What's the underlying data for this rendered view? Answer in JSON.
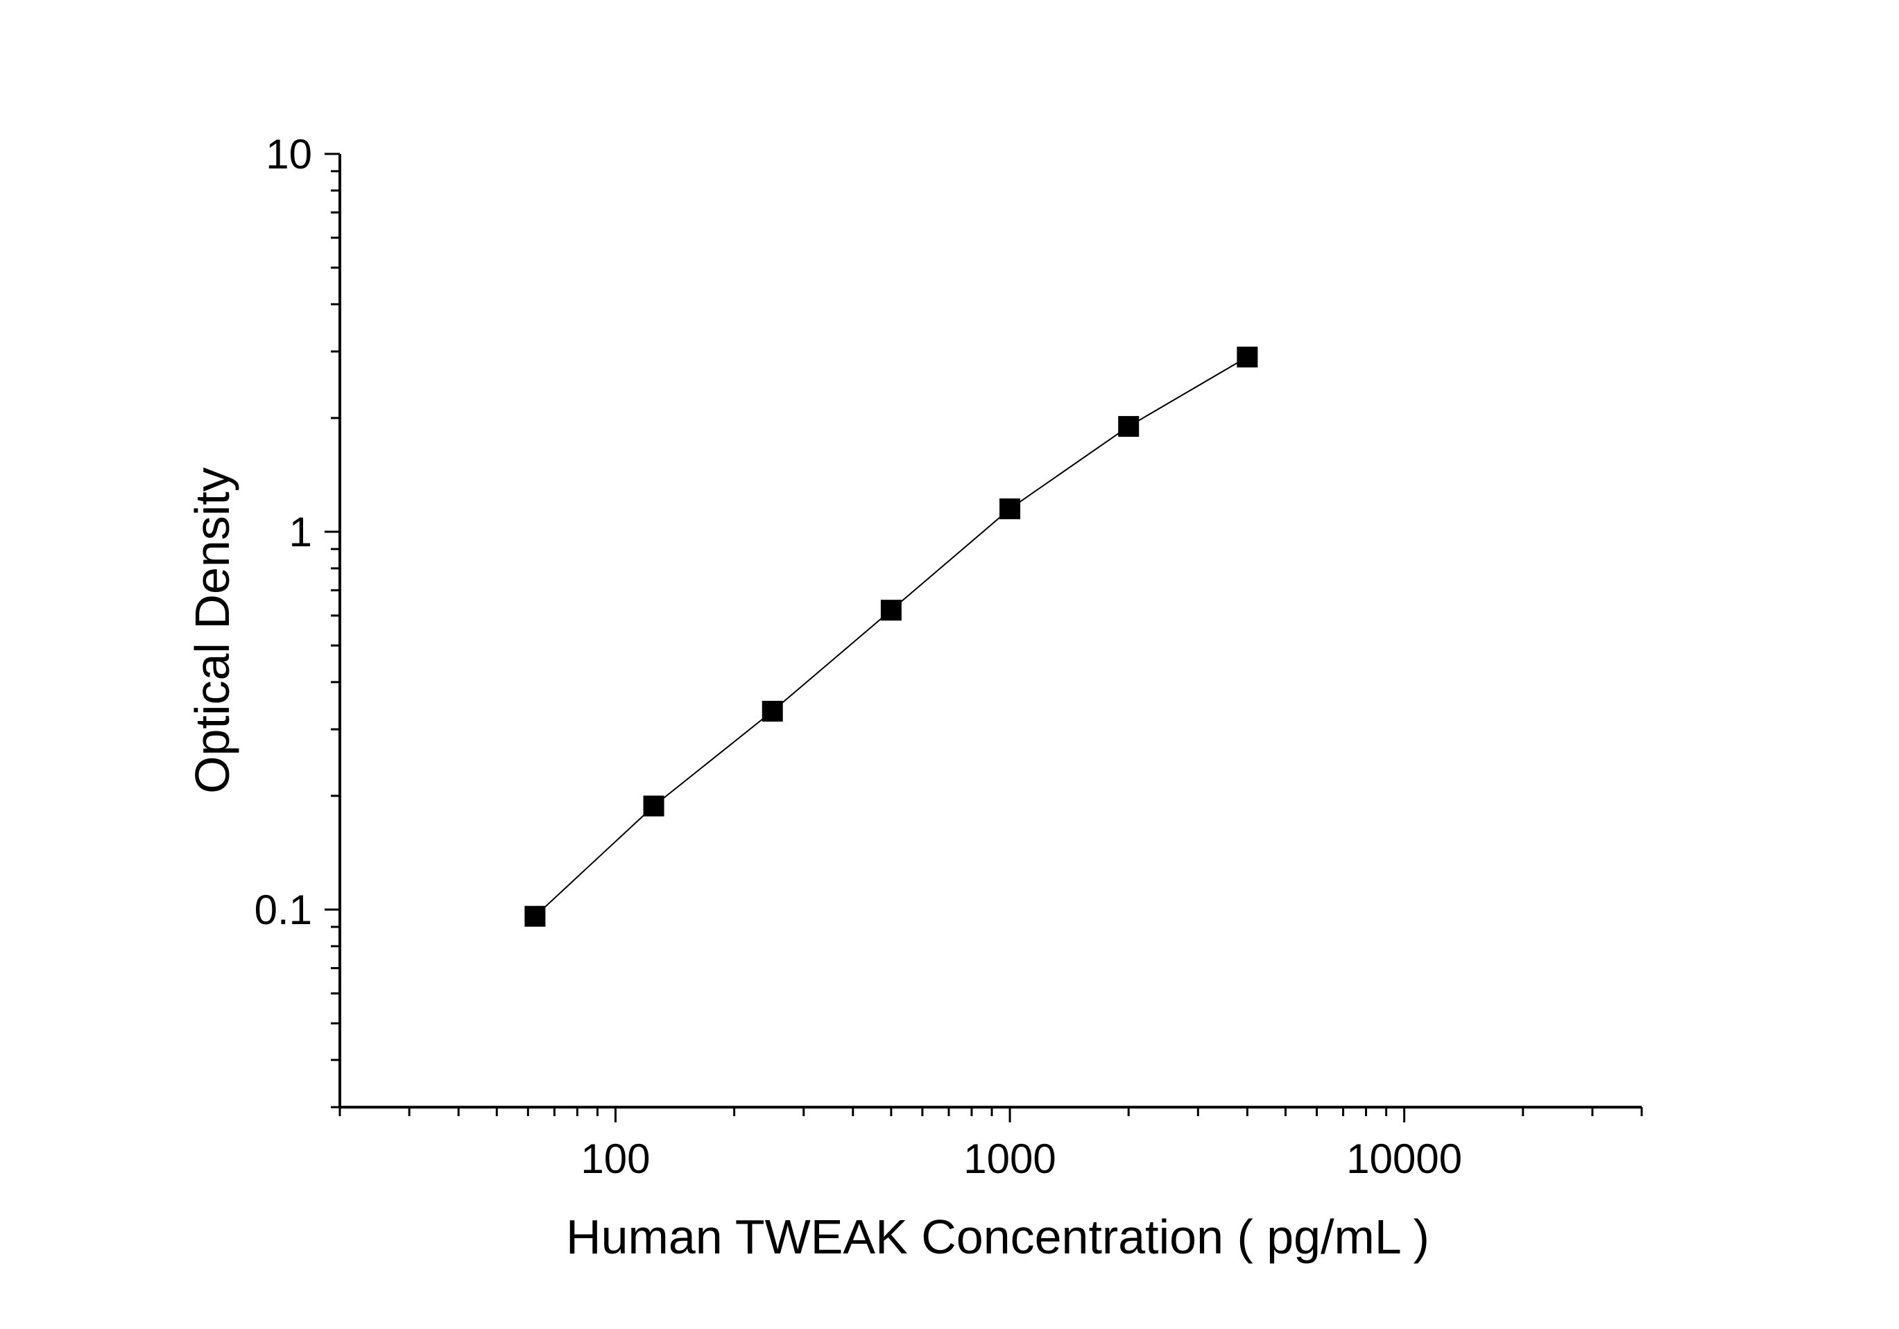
{
  "chart_data": {
    "type": "line",
    "xlabel": "Human TWEAK Concentration ( pg/mL )",
    "ylabel": "Optical Density",
    "x_scale": "log",
    "y_scale": "log",
    "xlim": [
      20,
      40000
    ],
    "ylim": [
      0.03,
      10
    ],
    "x_ticks": [
      "100",
      "1000",
      "10000"
    ],
    "y_ticks": [
      "0.1",
      "1",
      "10"
    ],
    "grid": false,
    "series": [
      {
        "marker": "square",
        "color": "#000000",
        "x": [
          62.5,
          125,
          250,
          500,
          1000,
          2000,
          4000
        ],
        "y": [
          0.096,
          0.188,
          0.335,
          0.62,
          1.15,
          1.9,
          2.9
        ]
      }
    ]
  }
}
